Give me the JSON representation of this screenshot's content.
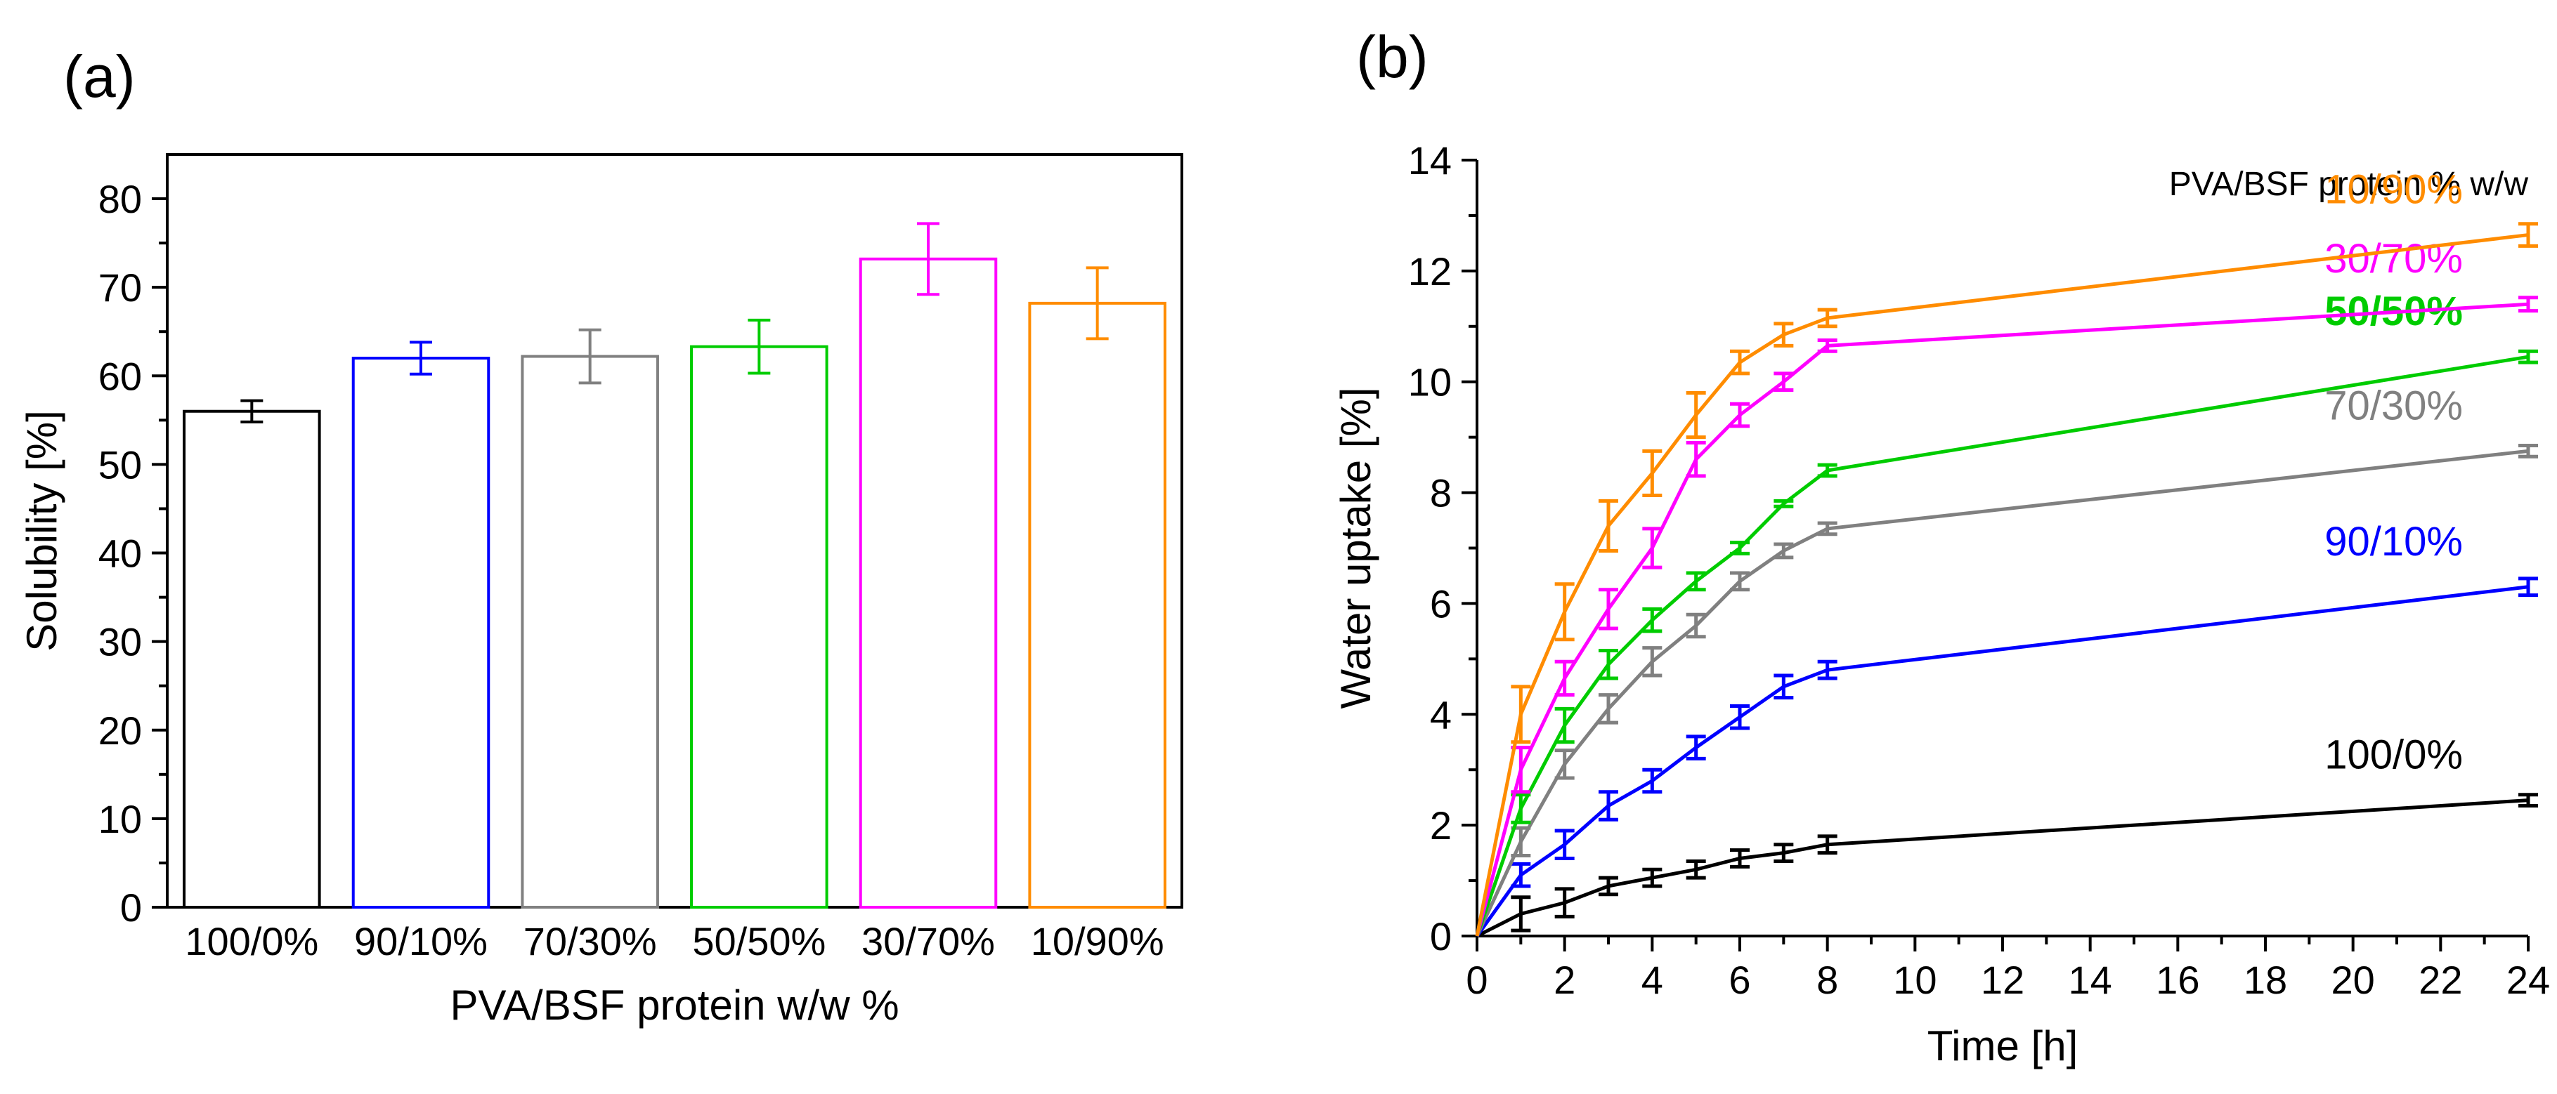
{
  "chart_data": [
    {
      "panel": "(a)",
      "type": "bar",
      "xlabel": "PVA/BSF protein w/w %",
      "ylabel": "Solubility [%]",
      "ylim": [
        0,
        85
      ],
      "yticks": [
        0,
        10,
        20,
        30,
        40,
        50,
        60,
        70,
        80
      ],
      "categories": [
        "100/0%",
        "90/10%",
        "70/30%",
        "50/50%",
        "30/70%",
        "10/90%"
      ],
      "values": [
        56,
        62,
        62.2,
        63.3,
        73.2,
        68.2
      ],
      "errors": [
        1.2,
        1.8,
        3.0,
        3.0,
        4.0,
        4.0
      ],
      "colors": [
        "#000000",
        "#0000ff",
        "#808080",
        "#00cc00",
        "#ff00ff",
        "#ff8c00"
      ]
    },
    {
      "panel": "(b)",
      "type": "line",
      "xlabel": "Time [h]",
      "ylabel": "Water uptake [%]",
      "xlim": [
        0,
        24
      ],
      "ylim": [
        0,
        14
      ],
      "xticks": [
        0,
        2,
        4,
        6,
        8,
        10,
        12,
        14,
        16,
        18,
        20,
        22,
        24
      ],
      "yticks": [
        0,
        2,
        4,
        6,
        8,
        10,
        12,
        14
      ],
      "legend_title": "PVA/BSF protein % w/w",
      "x": [
        0,
        1,
        2,
        3,
        4,
        5,
        6,
        7,
        8,
        24
      ],
      "series": [
        {
          "name": "100/0%",
          "color": "#000000",
          "values": [
            0,
            0.4,
            0.6,
            0.9,
            1.05,
            1.2,
            1.4,
            1.5,
            1.65,
            2.45
          ],
          "errors": [
            0,
            0.3,
            0.25,
            0.15,
            0.15,
            0.15,
            0.15,
            0.15,
            0.15,
            0.1
          ]
        },
        {
          "name": "90/10%",
          "color": "#0000ff",
          "values": [
            0,
            1.1,
            1.65,
            2.35,
            2.8,
            3.4,
            3.95,
            4.5,
            4.8,
            6.3
          ],
          "errors": [
            0,
            0.2,
            0.25,
            0.25,
            0.2,
            0.2,
            0.2,
            0.2,
            0.15,
            0.15
          ]
        },
        {
          "name": "70/30%",
          "color": "#808080",
          "values": [
            0,
            1.7,
            3.1,
            4.1,
            4.95,
            5.6,
            6.4,
            6.95,
            7.35,
            8.75
          ],
          "errors": [
            0,
            0.25,
            0.25,
            0.25,
            0.25,
            0.2,
            0.15,
            0.12,
            0.1,
            0.1
          ]
        },
        {
          "name": "50/50%",
          "color": "#00cc00",
          "values": [
            0,
            2.3,
            3.8,
            4.9,
            5.7,
            6.4,
            7.0,
            7.8,
            8.4,
            10.45
          ],
          "errors": [
            0,
            0.25,
            0.3,
            0.25,
            0.2,
            0.15,
            0.1,
            0.05,
            0.1,
            0.1
          ]
        },
        {
          "name": "30/70%",
          "color": "#ff00ff",
          "values": [
            0,
            3.0,
            4.65,
            5.9,
            7.0,
            8.6,
            9.4,
            10.0,
            10.65,
            11.4
          ],
          "errors": [
            0,
            0.4,
            0.3,
            0.35,
            0.35,
            0.3,
            0.2,
            0.15,
            0.1,
            0.12
          ]
        },
        {
          "name": "10/90%",
          "color": "#ff8c00",
          "values": [
            0,
            4.0,
            5.85,
            7.4,
            8.35,
            9.4,
            10.35,
            10.85,
            11.15,
            12.65
          ],
          "errors": [
            0,
            0.5,
            0.5,
            0.45,
            0.4,
            0.4,
            0.2,
            0.2,
            0.15,
            0.2
          ]
        }
      ]
    }
  ]
}
